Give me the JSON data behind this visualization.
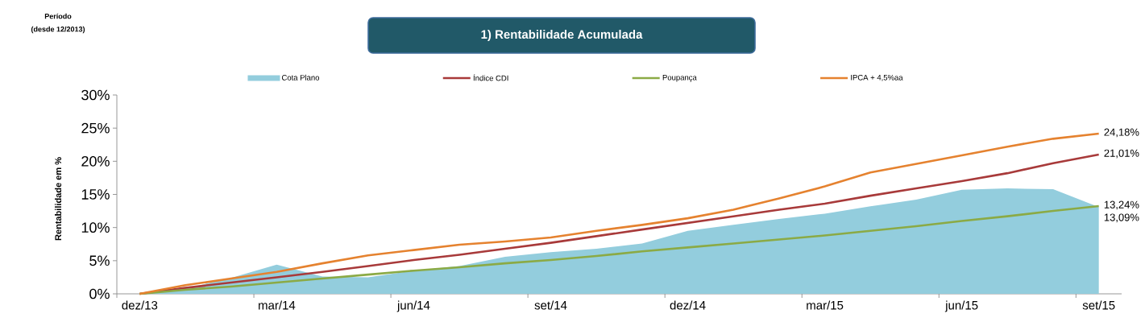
{
  "chart_data": {
    "type": "line",
    "title": "1) Rentabilidade Acumulada",
    "ylabel": "Rentabilidade em %",
    "annotations": [
      "Período",
      "(desde 12/2013)"
    ],
    "categories": [
      "dez/13",
      null,
      null,
      "mar/14",
      null,
      null,
      "jun/14",
      null,
      null,
      "set/14",
      null,
      null,
      "dez/14",
      null,
      null,
      "mar/15",
      null,
      null,
      "jun/15",
      null,
      null,
      "set/15"
    ],
    "series": [
      {
        "name": "Cota Plano",
        "type": "area",
        "color": "#93CDDD",
        "values": [
          0,
          0.8,
          2.4,
          4.4,
          2.6,
          2.5,
          3.5,
          4.2,
          5.6,
          6.3,
          6.8,
          7.6,
          9.5,
          10.4,
          11.3,
          12.1,
          13.2,
          14.2,
          15.7,
          15.9,
          15.8,
          13.09
        ],
        "value_labels": [
          null,
          null,
          null,
          null,
          null,
          null,
          null,
          null,
          null,
          null,
          null,
          null,
          null,
          null,
          null,
          null,
          null,
          null,
          null,
          null,
          null,
          "13,09%"
        ]
      },
      {
        "name": "Índice CDI",
        "color": "#A83A3A",
        "values": [
          0,
          0.9,
          1.7,
          2.5,
          3.3,
          4.2,
          5.1,
          5.9,
          6.8,
          7.7,
          8.7,
          9.7,
          10.7,
          11.7,
          12.7,
          13.6,
          14.8,
          15.9,
          17.0,
          18.2,
          19.7,
          21.01
        ],
        "value_labels": [
          null,
          null,
          null,
          null,
          null,
          null,
          null,
          null,
          null,
          null,
          null,
          null,
          null,
          null,
          null,
          null,
          null,
          null,
          null,
          null,
          null,
          "21,01%"
        ]
      },
      {
        "name": "Poupança",
        "color": "#8BAA45",
        "values": [
          0,
          0.6,
          1.1,
          1.7,
          2.3,
          2.9,
          3.5,
          4.0,
          4.6,
          5.1,
          5.7,
          6.4,
          7.0,
          7.6,
          8.2,
          8.8,
          9.5,
          10.2,
          11.0,
          11.7,
          12.5,
          13.24
        ],
        "value_labels": [
          null,
          null,
          null,
          null,
          null,
          null,
          null,
          null,
          null,
          null,
          null,
          null,
          null,
          null,
          null,
          null,
          null,
          null,
          null,
          null,
          null,
          "13,24%"
        ]
      },
      {
        "name": "IPCA + 4,5%aa",
        "color": "#E5822F",
        "values": [
          0,
          1.3,
          2.3,
          3.3,
          4.6,
          5.8,
          6.6,
          7.4,
          7.9,
          8.5,
          9.5,
          10.4,
          11.4,
          12.7,
          14.4,
          16.2,
          18.3,
          19.6,
          20.9,
          22.2,
          23.4,
          24.18
        ],
        "value_labels": [
          null,
          null,
          null,
          null,
          null,
          null,
          null,
          null,
          null,
          null,
          null,
          null,
          null,
          null,
          null,
          null,
          null,
          null,
          null,
          null,
          null,
          "24,18%"
        ]
      }
    ],
    "ylim": [
      0,
      30
    ],
    "yticks": [
      {
        "value": 0,
        "label": "0%"
      },
      {
        "value": 5,
        "label": "5%"
      },
      {
        "value": 10,
        "label": "10%"
      },
      {
        "value": 15,
        "label": "15%"
      },
      {
        "value": 20,
        "label": "20%"
      },
      {
        "value": 25,
        "label": "25%"
      },
      {
        "value": 30,
        "label": "30%"
      }
    ],
    "legend": "top",
    "line_style": "solid"
  }
}
